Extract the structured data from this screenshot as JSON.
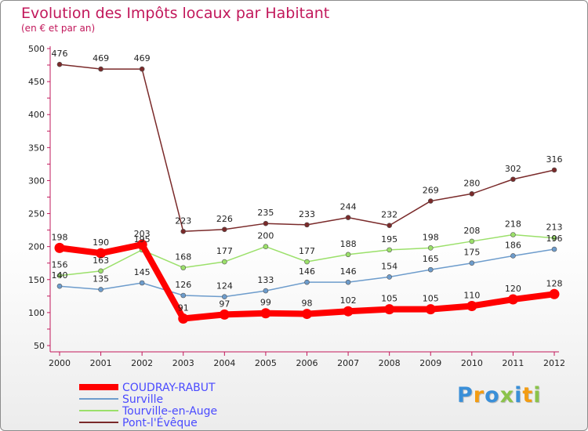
{
  "chart_data": {
    "type": "line",
    "title": "Evolution des Impôts locaux par Habitant",
    "subtitle": "(en € et par an)",
    "xlabel": "",
    "ylabel": "",
    "x": [
      "2000",
      "2001",
      "2002",
      "2003",
      "2004",
      "2005",
      "2006",
      "2007",
      "2008",
      "2009",
      "2010",
      "2011",
      "2012"
    ],
    "ylim": [
      50,
      500
    ],
    "yticks": [
      50,
      100,
      150,
      200,
      250,
      300,
      350,
      400,
      450,
      500
    ],
    "grid": false,
    "legend_position": "bottom-left",
    "series": [
      {
        "name": "COUDRAY-RABUT",
        "color": "#ff0000",
        "emphasis": true,
        "values": [
          198,
          190,
          203,
          91,
          97,
          99,
          98,
          102,
          105,
          105,
          110,
          120,
          128
        ]
      },
      {
        "name": "Surville",
        "color": "#6d9ccc",
        "values": [
          140,
          135,
          145,
          126,
          124,
          133,
          146,
          146,
          154,
          165,
          175,
          186,
          196
        ]
      },
      {
        "name": "Tourville-en-Auge",
        "color": "#9be06a",
        "values": [
          156,
          163,
          195,
          168,
          177,
          200,
          177,
          188,
          195,
          198,
          208,
          218,
          213
        ]
      },
      {
        "name": "Pont-l'Évêque",
        "color": "#7a2a2a",
        "values": [
          476,
          469,
          469,
          223,
          226,
          235,
          233,
          244,
          232,
          269,
          280,
          302,
          316
        ]
      }
    ]
  },
  "brand": {
    "letters": [
      "P",
      "r",
      "o",
      "x",
      "i",
      "t",
      "i"
    ],
    "colors": [
      "#3a8fd8",
      "#f39c12",
      "#3a8fd8",
      "#8bc34a",
      "#3a8fd8",
      "#f39c12",
      "#8bc34a"
    ]
  }
}
